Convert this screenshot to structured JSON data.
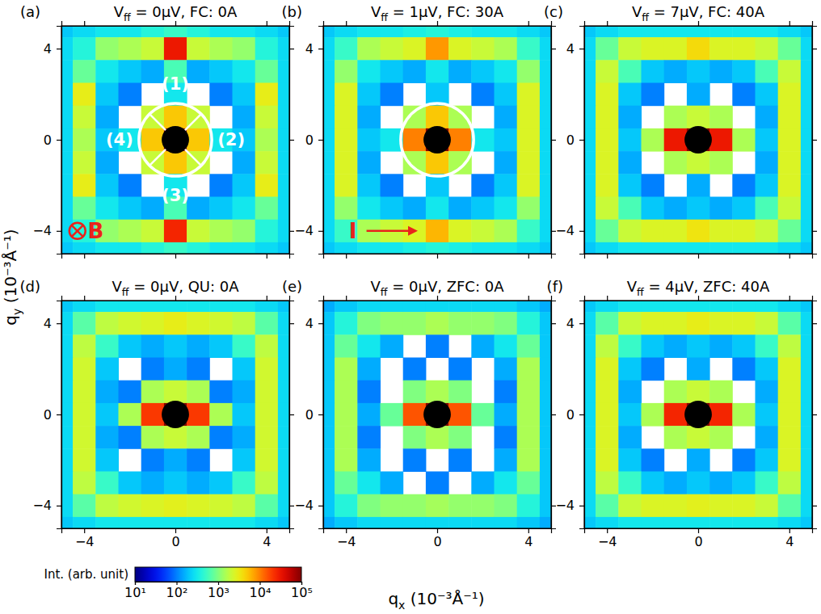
{
  "chart_data": {
    "type": "heatmap",
    "x_label": "qx (10⁻³Å⁻¹)",
    "y_label": "qy (10⁻³Å⁻¹)",
    "xlim": [
      -5,
      5
    ],
    "ylim": [
      -5,
      5
    ],
    "xticks": [
      {
        "value": -4,
        "label": "−4"
      },
      0,
      4
    ],
    "yticks": [
      {
        "value": -4,
        "label": "−4"
      },
      0,
      4
    ],
    "x": [
      -5,
      -4,
      -3,
      -2,
      -1,
      0,
      1,
      2,
      3,
      4,
      5
    ],
    "y": [
      5,
      4,
      3,
      2,
      1,
      0,
      -1,
      -2,
      -3,
      -4,
      -5
    ],
    "colorbar": {
      "title": "Int. (arb. unit)",
      "log": true,
      "range": [
        10,
        100000
      ],
      "ticks": [
        {
          "value": 10,
          "label": "10¹"
        },
        {
          "value": 100,
          "label": "10²"
        },
        {
          "value": 1000,
          "label": "10³"
        },
        {
          "value": 10000,
          "label": "10⁴"
        },
        {
          "value": 100000,
          "label": "10⁵"
        }
      ]
    },
    "panels": [
      {
        "letter": "(a)",
        "title": "Vff = 0μV, FC: 0A",
        "labels": {
          "sectors": [
            "(1)",
            "(2)",
            "(3)",
            "(4)"
          ],
          "field": "B"
        },
        "cells": [
          [
            200,
            250,
            300,
            300,
            400,
            500,
            400,
            300,
            300,
            250,
            200
          ],
          [
            250,
            400,
            1200,
            1500,
            2000,
            30000,
            2000,
            1500,
            1200,
            400,
            250
          ],
          [
            250,
            800,
            300,
            200,
            150,
            600,
            150,
            200,
            300,
            800,
            250
          ],
          [
            250,
            3000,
            200,
            100,
            null,
            300,
            null,
            100,
            200,
            3000,
            250
          ],
          [
            250,
            2000,
            150,
            null,
            2000,
            5000,
            2000,
            null,
            150,
            2000,
            250
          ],
          [
            250,
            1500,
            200,
            300,
            5000,
            100000,
            5000,
            300,
            200,
            1500,
            250
          ],
          [
            250,
            2000,
            150,
            null,
            2000,
            5000,
            2000,
            null,
            150,
            2000,
            250
          ],
          [
            250,
            3000,
            200,
            100,
            null,
            300,
            null,
            100,
            200,
            3000,
            250
          ],
          [
            250,
            800,
            300,
            200,
            150,
            600,
            150,
            200,
            300,
            800,
            250
          ],
          [
            250,
            400,
            1200,
            1500,
            2000,
            25000,
            2000,
            1500,
            1200,
            400,
            250
          ],
          [
            200,
            250,
            300,
            300,
            400,
            500,
            400,
            300,
            300,
            250,
            200
          ]
        ]
      },
      {
        "letter": "(b)",
        "title": "Vff = 1μV, FC: 30A",
        "labels": {
          "current": "I"
        },
        "cells": [
          [
            200,
            250,
            300,
            300,
            350,
            400,
            350,
            300,
            300,
            250,
            200
          ],
          [
            250,
            500,
            1500,
            2000,
            2500,
            8000,
            2500,
            2000,
            1500,
            500,
            250
          ],
          [
            250,
            1200,
            300,
            200,
            150,
            300,
            150,
            200,
            300,
            1200,
            250
          ],
          [
            250,
            2500,
            200,
            100,
            null,
            200,
            null,
            100,
            200,
            2500,
            250
          ],
          [
            250,
            2500,
            150,
            null,
            1500,
            5000,
            1500,
            null,
            150,
            2500,
            250
          ],
          [
            250,
            2500,
            200,
            300,
            10000,
            100000,
            10000,
            300,
            200,
            2500,
            250
          ],
          [
            250,
            2500,
            150,
            null,
            1500,
            5000,
            1500,
            null,
            150,
            2500,
            250
          ],
          [
            250,
            2500,
            200,
            100,
            null,
            200,
            null,
            100,
            200,
            2500,
            250
          ],
          [
            250,
            1200,
            300,
            200,
            150,
            300,
            150,
            200,
            300,
            1200,
            250
          ],
          [
            250,
            500,
            1500,
            2000,
            2500,
            6000,
            2500,
            2000,
            1500,
            500,
            250
          ],
          [
            200,
            250,
            300,
            300,
            350,
            400,
            350,
            300,
            300,
            250,
            200
          ]
        ]
      },
      {
        "letter": "(c)",
        "title": "Vff = 7μV, FC: 40A",
        "cells": [
          [
            200,
            250,
            300,
            300,
            300,
            300,
            300,
            300,
            300,
            250,
            200
          ],
          [
            250,
            800,
            2000,
            2500,
            2500,
            4000,
            2500,
            2500,
            2000,
            800,
            250
          ],
          [
            250,
            2000,
            600,
            200,
            150,
            200,
            150,
            200,
            600,
            2000,
            250
          ],
          [
            250,
            2500,
            200,
            100,
            null,
            150,
            null,
            100,
            200,
            2500,
            250
          ],
          [
            250,
            2500,
            150,
            null,
            1500,
            2000,
            1500,
            null,
            150,
            2500,
            250
          ],
          [
            250,
            2500,
            200,
            1500,
            30000,
            100000,
            30000,
            1500,
            200,
            2500,
            250
          ],
          [
            250,
            2500,
            150,
            null,
            1500,
            2000,
            1500,
            null,
            150,
            2500,
            250
          ],
          [
            250,
            2500,
            200,
            100,
            null,
            150,
            null,
            100,
            200,
            2500,
            250
          ],
          [
            250,
            2000,
            600,
            200,
            150,
            200,
            150,
            200,
            600,
            2000,
            250
          ],
          [
            250,
            800,
            2000,
            2500,
            2500,
            3500,
            2500,
            2500,
            2000,
            800,
            250
          ],
          [
            200,
            250,
            300,
            300,
            300,
            300,
            300,
            300,
            300,
            250,
            200
          ]
        ]
      },
      {
        "letter": "(d)",
        "title": "Vff = 0μV, QU: 0A",
        "cells": [
          [
            200,
            250,
            300,
            300,
            300,
            300,
            300,
            300,
            300,
            250,
            200
          ],
          [
            250,
            700,
            1800,
            2200,
            2500,
            3000,
            2500,
            2200,
            1800,
            700,
            250
          ],
          [
            250,
            1800,
            500,
            200,
            150,
            200,
            150,
            200,
            500,
            1800,
            250
          ],
          [
            250,
            2200,
            200,
            null,
            100,
            150,
            100,
            null,
            200,
            2200,
            250
          ],
          [
            250,
            2200,
            150,
            100,
            1500,
            2000,
            1500,
            100,
            150,
            2200,
            250
          ],
          [
            250,
            2200,
            200,
            1500,
            20000,
            100000,
            20000,
            1500,
            200,
            2200,
            250
          ],
          [
            250,
            2200,
            150,
            100,
            1500,
            2000,
            1500,
            100,
            150,
            2200,
            250
          ],
          [
            250,
            2200,
            200,
            null,
            100,
            150,
            100,
            null,
            200,
            2200,
            250
          ],
          [
            250,
            1800,
            500,
            200,
            150,
            200,
            150,
            200,
            500,
            1800,
            250
          ],
          [
            250,
            700,
            1800,
            2200,
            2500,
            2800,
            2500,
            2200,
            1800,
            700,
            250
          ],
          [
            200,
            250,
            300,
            300,
            300,
            300,
            300,
            300,
            300,
            250,
            200
          ]
        ]
      },
      {
        "letter": "(e)",
        "title": "Vff = 0μV, ZFC: 0A",
        "cells": [
          [
            150,
            200,
            250,
            250,
            250,
            250,
            250,
            250,
            250,
            200,
            150
          ],
          [
            200,
            400,
            1000,
            1200,
            1200,
            1500,
            1200,
            1200,
            1000,
            400,
            200
          ],
          [
            200,
            800,
            300,
            150,
            null,
            100,
            null,
            150,
            300,
            800,
            200
          ],
          [
            200,
            1500,
            150,
            null,
            100,
            null,
            100,
            null,
            150,
            1500,
            200
          ],
          [
            200,
            1500,
            100,
            null,
            1000,
            1500,
            1000,
            null,
            100,
            1500,
            200
          ],
          [
            200,
            1500,
            150,
            800,
            15000,
            100000,
            15000,
            800,
            150,
            1500,
            200
          ],
          [
            200,
            1500,
            100,
            null,
            1000,
            1500,
            1000,
            null,
            100,
            1500,
            200
          ],
          [
            200,
            1500,
            150,
            null,
            100,
            null,
            100,
            null,
            150,
            1500,
            200
          ],
          [
            200,
            800,
            300,
            150,
            null,
            100,
            null,
            150,
            300,
            800,
            200
          ],
          [
            200,
            400,
            1000,
            1200,
            1200,
            1400,
            1200,
            1200,
            1000,
            400,
            200
          ],
          [
            150,
            200,
            250,
            250,
            250,
            250,
            250,
            250,
            250,
            200,
            150
          ]
        ]
      },
      {
        "letter": "(f)",
        "title": "Vff = 4μV, ZFC: 40A",
        "cells": [
          [
            200,
            250,
            300,
            300,
            300,
            300,
            300,
            300,
            300,
            250,
            200
          ],
          [
            250,
            700,
            2000,
            2500,
            2500,
            3000,
            2500,
            2500,
            2000,
            700,
            250
          ],
          [
            250,
            1800,
            500,
            200,
            150,
            200,
            150,
            200,
            500,
            1800,
            250
          ],
          [
            250,
            2500,
            200,
            100,
            null,
            150,
            null,
            100,
            200,
            2500,
            250
          ],
          [
            250,
            2500,
            150,
            null,
            1500,
            2000,
            1500,
            null,
            150,
            2500,
            250
          ],
          [
            250,
            2500,
            200,
            1500,
            25000,
            100000,
            25000,
            1500,
            200,
            2500,
            250
          ],
          [
            250,
            2500,
            150,
            null,
            1500,
            2000,
            1500,
            null,
            150,
            2500,
            250
          ],
          [
            250,
            2500,
            200,
            100,
            null,
            150,
            null,
            100,
            200,
            2500,
            250
          ],
          [
            250,
            1800,
            500,
            200,
            150,
            200,
            150,
            200,
            500,
            1800,
            250
          ],
          [
            250,
            700,
            2000,
            2500,
            2500,
            2800,
            2500,
            2500,
            2000,
            700,
            250
          ],
          [
            200,
            250,
            300,
            300,
            300,
            300,
            300,
            300,
            300,
            250,
            200
          ]
        ]
      }
    ]
  }
}
